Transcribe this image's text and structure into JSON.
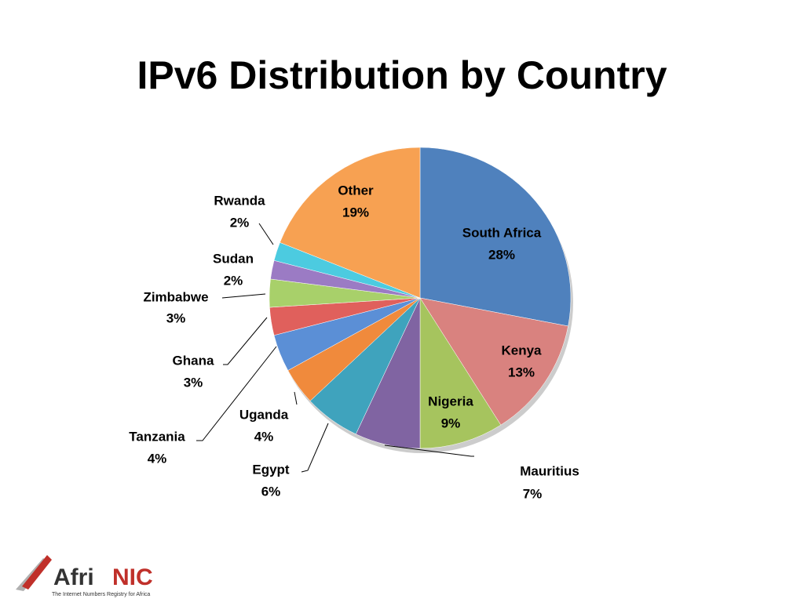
{
  "chart_data": {
    "type": "pie",
    "title": "IPv6 Distribution by Country",
    "categories": [
      "South Africa",
      "Kenya",
      "Nigeria",
      "Mauritius",
      "Egypt",
      "Uganda",
      "Tanzania",
      "Ghana",
      "Zimbabwe",
      "Sudan",
      "Rwanda",
      "Other"
    ],
    "values": [
      28,
      13,
      9,
      7,
      6,
      4,
      4,
      3,
      3,
      2,
      2,
      19
    ],
    "value_labels": [
      "28%",
      "13%",
      "9%",
      "7%",
      "6%",
      "4%",
      "4%",
      "3%",
      "3%",
      "2%",
      "2%",
      "19%"
    ],
    "colors": [
      "#4f81bd",
      "#d9827f",
      "#a6c45e",
      "#8064a2",
      "#3fa3bd",
      "#f08a3c",
      "#5b8fd6",
      "#e0605c",
      "#a8d06a",
      "#9b7bc4",
      "#4ccbe0",
      "#f7a152"
    ]
  },
  "logo": {
    "part1": "Afri",
    "part2": "NIC",
    "tagline": "The Internet Numbers Registry for Africa"
  }
}
